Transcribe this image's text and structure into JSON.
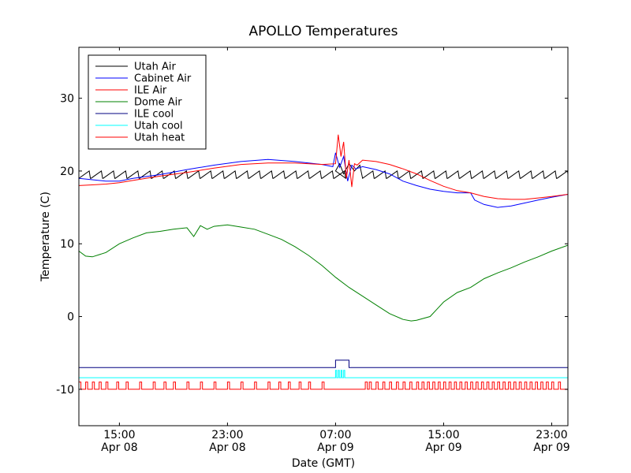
{
  "chart_data": {
    "type": "line",
    "title": "APOLLO Temperatures",
    "xlabel": "Date (GMT)",
    "ylabel": "Temperature (C)",
    "xlim": [
      11.0,
      47.2
    ],
    "ylim": [
      -15,
      37
    ],
    "grid": false,
    "legend_position": "top-left",
    "x_units": "hours since 2010-Apr-08 00:00 GMT",
    "x_ticks": [
      {
        "x": 14,
        "time": "15:00",
        "date": "Apr 08"
      },
      {
        "x": 22,
        "time": "23:00",
        "date": "Apr 08"
      },
      {
        "x": 30,
        "time": "07:00",
        "date": "Apr 09"
      },
      {
        "x": 38,
        "time": "15:00",
        "date": "Apr 09"
      },
      {
        "x": 46,
        "time": "23:00",
        "date": "Apr 09"
      }
    ],
    "y_ticks": [
      {
        "value": 30,
        "label": "30"
      },
      {
        "value": 20,
        "label": "20"
      },
      {
        "value": 10,
        "label": "10"
      },
      {
        "value": 0,
        "label": "0"
      },
      {
        "value": -10,
        "label": "-10"
      }
    ],
    "series": [
      {
        "name": "Utah Air",
        "color": "#000000",
        "style": "sawtooth",
        "base": 19.5,
        "amplitude": 1.0,
        "period_hours": 0.9,
        "x_range": [
          11.0,
          47.2
        ],
        "disturbance": {
          "x": [
            30.0,
            30.3,
            30.6,
            31.0,
            31.4,
            31.8
          ],
          "y": [
            20.0,
            21.0,
            19.6,
            21.0,
            20.0,
            20.8
          ]
        }
      },
      {
        "name": "Cabinet Air",
        "color": "#0000ff",
        "style": "line",
        "x": [
          11.0,
          12.0,
          13.0,
          14.0,
          15.0,
          17.0,
          19.0,
          21.0,
          23.0,
          25.0,
          27.0,
          29.0,
          29.8,
          30.0,
          30.3,
          30.6,
          30.9,
          31.2,
          31.5,
          32.0,
          33.0,
          34.0,
          35.0,
          36.0,
          37.0,
          38.0,
          39.0,
          40.0,
          40.3,
          41.0,
          42.0,
          43.0,
          44.0,
          45.0,
          46.0,
          47.2
        ],
        "y": [
          19.0,
          18.8,
          18.6,
          18.6,
          19.0,
          19.5,
          20.2,
          20.8,
          21.3,
          21.6,
          21.3,
          20.9,
          20.6,
          22.5,
          20.5,
          22.0,
          18.6,
          20.8,
          20.3,
          20.6,
          20.2,
          19.6,
          18.6,
          18.0,
          17.5,
          17.2,
          17.0,
          17.0,
          16.0,
          15.4,
          15.0,
          15.2,
          15.6,
          16.0,
          16.4,
          16.8
        ]
      },
      {
        "name": "ILE Air",
        "color": "#ff0000",
        "style": "line",
        "x": [
          11.0,
          12.0,
          13.0,
          14.0,
          15.0,
          17.0,
          19.0,
          21.0,
          23.0,
          25.0,
          27.0,
          29.0,
          30.0,
          30.2,
          30.4,
          30.6,
          30.8,
          31.0,
          31.2,
          31.4,
          31.6,
          32.0,
          33.0,
          34.0,
          35.0,
          36.0,
          37.0,
          38.0,
          39.0,
          40.0,
          41.0,
          42.0,
          43.0,
          44.0,
          45.0,
          46.0,
          47.2
        ],
        "y": [
          18.0,
          18.1,
          18.2,
          18.4,
          18.7,
          19.3,
          19.8,
          20.4,
          20.9,
          21.1,
          21.1,
          20.9,
          21.0,
          25.0,
          22.0,
          24.0,
          19.0,
          21.5,
          17.8,
          21.0,
          20.8,
          21.5,
          21.3,
          20.9,
          20.3,
          19.6,
          18.7,
          17.9,
          17.3,
          17.0,
          16.5,
          16.2,
          16.1,
          16.1,
          16.3,
          16.5,
          16.8
        ]
      },
      {
        "name": "Dome Air",
        "color": "#008000",
        "style": "line",
        "x": [
          11.0,
          11.5,
          12.0,
          13.0,
          14.0,
          15.0,
          16.0,
          17.0,
          18.0,
          19.0,
          19.5,
          20.0,
          20.5,
          21.0,
          22.0,
          23.0,
          24.0,
          25.0,
          26.0,
          27.0,
          28.0,
          29.0,
          30.0,
          31.0,
          32.0,
          33.0,
          34.0,
          35.0,
          35.6,
          36.0,
          37.0,
          37.5,
          38.0,
          39.0,
          40.0,
          41.0,
          42.0,
          43.0,
          44.0,
          45.0,
          46.0,
          47.2
        ],
        "y": [
          9.0,
          8.3,
          8.2,
          8.8,
          10.0,
          10.8,
          11.5,
          11.7,
          12.0,
          12.2,
          11.0,
          12.5,
          12.0,
          12.4,
          12.6,
          12.3,
          12.0,
          11.3,
          10.6,
          9.6,
          8.4,
          7.0,
          5.4,
          4.0,
          2.8,
          1.6,
          0.4,
          -0.4,
          -0.6,
          -0.5,
          0.0,
          1.0,
          2.0,
          3.3,
          4.0,
          5.2,
          6.0,
          6.7,
          7.5,
          8.2,
          9.0,
          9.8
        ]
      },
      {
        "name": "ILE cool",
        "color": "#000080",
        "style": "step",
        "x": [
          11.0,
          30.0,
          30.0,
          31.0,
          31.0,
          47.2
        ],
        "y": [
          -7.0,
          -7.0,
          -6.0,
          -6.0,
          -7.0,
          -7.0
        ]
      },
      {
        "name": "Utah cool",
        "color": "#00ffff",
        "style": "pulses",
        "base": -8.4,
        "high": -7.4,
        "pulse_width_hours": 0.08,
        "pulse_starts": [
          30.0,
          30.2,
          30.4,
          30.6
        ]
      },
      {
        "name": "Utah heat",
        "color": "#ff0000",
        "style": "pulses",
        "base": -10.0,
        "high": -9.0,
        "pulse_width_hours": 0.15,
        "pulse_starts": [
          11.0,
          11.5,
          12.0,
          12.5,
          13.0,
          13.8,
          14.5,
          15.5,
          16.5,
          17.3,
          18.0,
          19.0,
          20.0,
          21.0,
          22.0,
          23.0,
          24.0,
          25.0,
          25.8,
          26.5,
          27.3,
          28.0,
          29.0,
          32.2,
          32.5,
          33.0,
          33.5,
          34.0,
          34.5,
          35.0,
          35.5,
          36.0,
          36.4,
          36.8,
          37.2,
          37.6,
          38.0,
          38.4,
          38.8,
          39.2,
          39.6,
          40.0,
          40.4,
          40.8,
          41.2,
          41.6,
          42.0,
          42.4,
          42.8,
          43.2,
          43.6,
          44.0,
          44.4,
          44.8,
          45.2,
          45.6,
          46.0,
          46.5
        ]
      }
    ]
  }
}
